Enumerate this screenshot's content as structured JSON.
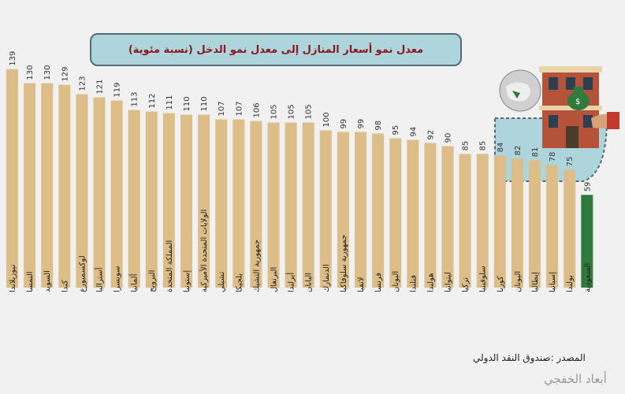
{
  "chart_data": {
    "type": "bar",
    "title": "معدل نمو أسعار المنازل إلى معدل نمو الدخل (نسبة مئوية)",
    "categories": [
      "نيوزيلاندا",
      "النمسا",
      "السويد",
      "كندا",
      "لوكسمبورغ",
      "أستراليا",
      "سويسرا",
      "ألمانيا",
      "النرويج",
      "المملكة المتحدة",
      "إستونيا",
      "الولايات المتحدة الأميركية",
      "تشيلي",
      "بلجيكا",
      "جمهورية التشيك",
      "البرتغال",
      "أيرلندا",
      "اليابان",
      "الدنمارك",
      "جمهورية سلوفاكيا",
      "لاتفيا",
      "فرنسا",
      "اليونان",
      "فنلندا",
      "هولندا",
      "ليتوانيا",
      "تركيا",
      "سلوفينيا",
      "كوريا",
      "اليونان",
      "إيطاليا",
      "إسبانيا",
      "بولندا",
      "السعودية"
    ],
    "values": [
      139,
      130,
      130,
      129,
      123,
      121,
      119,
      113,
      112,
      111,
      110,
      110,
      107,
      107,
      106,
      105,
      105,
      105,
      100,
      99,
      99,
      98,
      95,
      94,
      92,
      90,
      85,
      85,
      84,
      82,
      81,
      78,
      75,
      59
    ],
    "highlight_index": 33,
    "colors": {
      "bar": "#ddbd88",
      "highlight": "#2f7a3c",
      "label": "#333333"
    },
    "ylim": [
      0,
      145
    ]
  },
  "source_text": "المصدر :صندوق النقد الدولي",
  "watermark": "أبعاد الخفجي",
  "icons": [
    "globe-icon",
    "house-icon",
    "money-bag-icon",
    "hand-icon"
  ]
}
